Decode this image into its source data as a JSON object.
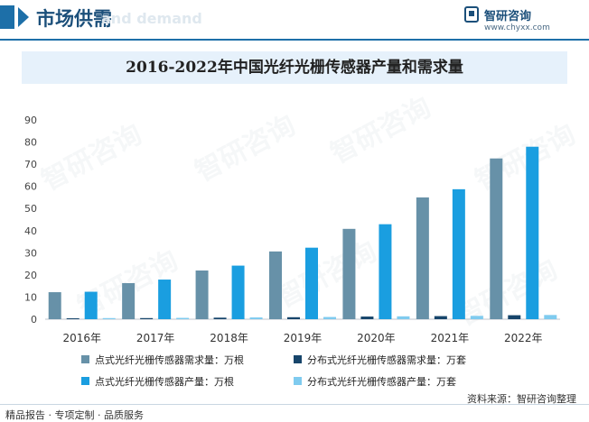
{
  "header": {
    "title": "市场供需",
    "ghost": "and demand",
    "brand_name": "智研咨询",
    "brand_url": "www.chyxx.com"
  },
  "footer": {
    "left": "精品报告 · 专项定制 · 品质服务",
    "source": "资料来源：智研咨询整理"
  },
  "watermark": "智研咨询",
  "colors": {
    "s1": "#6791a8",
    "s2": "#17456b",
    "s3": "#1a9ee0",
    "s4": "#7fcbef",
    "accent": "#1d6fa8"
  },
  "chart_data": {
    "type": "bar",
    "title": "2016-2022年中国光纤光栅传感器产量和需求量",
    "categories": [
      "2016年",
      "2017年",
      "2018年",
      "2019年",
      "2020年",
      "2021年",
      "2022年"
    ],
    "ylim": [
      0,
      90
    ],
    "yticks": [
      0,
      10,
      20,
      30,
      40,
      50,
      60,
      70,
      80,
      90
    ],
    "grid": false,
    "legend_position": "bottom",
    "series": [
      {
        "name": "点式光纤光栅传感器需求量：万根",
        "values": [
          12.2,
          16.3,
          22.0,
          30.6,
          40.8,
          55.0,
          72.6
        ]
      },
      {
        "name": "分布式光纤光栅传感器需求量：万套",
        "values": [
          0.4,
          0.5,
          0.7,
          0.9,
          1.2,
          1.4,
          1.8
        ]
      },
      {
        "name": "点式光纤光栅传感器产量：万根",
        "values": [
          12.4,
          17.9,
          24.2,
          32.3,
          42.9,
          58.7,
          77.9
        ]
      },
      {
        "name": "分布式光纤光栅传感器产量：万套",
        "values": [
          0.5,
          0.6,
          0.8,
          1.0,
          1.3,
          1.5,
          1.9
        ]
      }
    ]
  }
}
